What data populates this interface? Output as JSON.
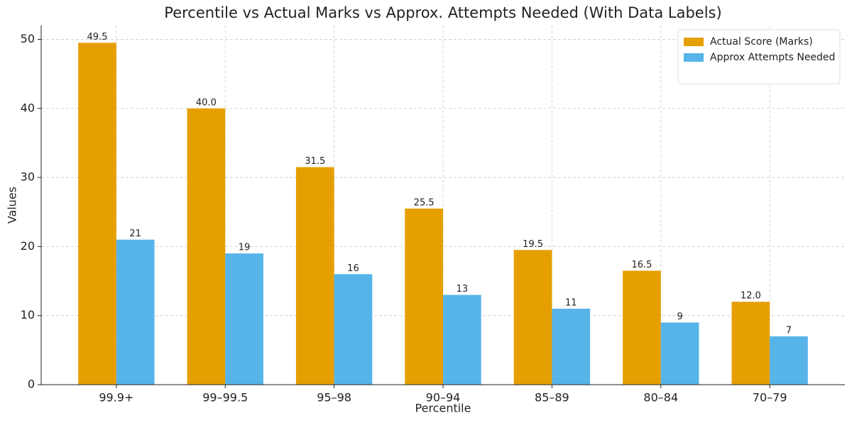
{
  "chart_data": {
    "type": "bar",
    "title": "Percentile vs Actual Marks vs Approx. Attempts Needed (With Data Labels)",
    "x_label": "Percentile",
    "y_label": "Values",
    "categories": [
      "99.9+",
      "99–99.5",
      "95–98",
      "90–94",
      "85–89",
      "80–84",
      "70–79"
    ],
    "series": [
      {
        "name": "Actual Score (Marks)",
        "color": "#e69f00",
        "values": [
          49.5,
          40,
          31.5,
          25.5,
          19.5,
          16.5,
          12
        ],
        "value_labels": [
          "49.5",
          "40.0",
          "31.5",
          "25.5",
          "19.5",
          "16.5",
          "12.0"
        ]
      },
      {
        "name": "Approx Attempts Needed",
        "color": "#56b4e9",
        "values": [
          21,
          19,
          16,
          13,
          11,
          9,
          7
        ]
      }
    ],
    "ylim": [
      0,
      52
    ],
    "yticks": [
      0,
      10,
      20,
      30,
      40,
      50
    ],
    "grid": true,
    "legend": "upper right"
  }
}
